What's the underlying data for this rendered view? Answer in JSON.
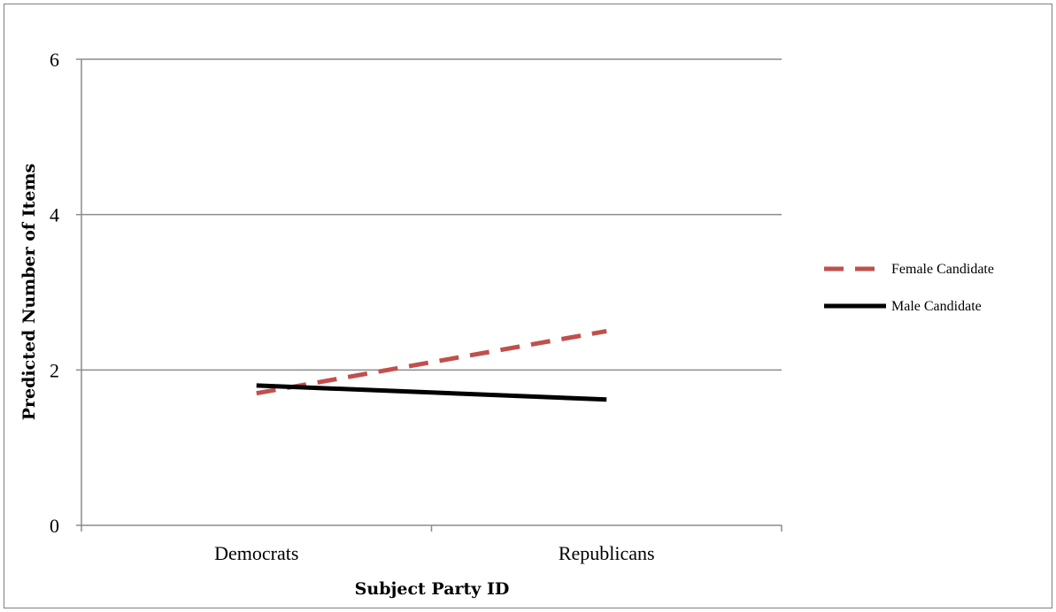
{
  "chart_data": {
    "type": "line",
    "categories": [
      "Democrats",
      "Republicans"
    ],
    "series": [
      {
        "name": "Female Candidate",
        "values": [
          1.7,
          2.5
        ],
        "color": "#c0504d",
        "style": "dashed"
      },
      {
        "name": "Male Candidate",
        "values": [
          1.8,
          1.62
        ],
        "color": "#000000",
        "style": "solid"
      }
    ],
    "title": "",
    "xlabel": "Subject Party ID",
    "ylabel": "Predicted Number of Items",
    "ylim": [
      0,
      6
    ],
    "yticks": [
      0,
      2,
      4,
      6
    ],
    "grid": true,
    "legend_position": "right"
  }
}
